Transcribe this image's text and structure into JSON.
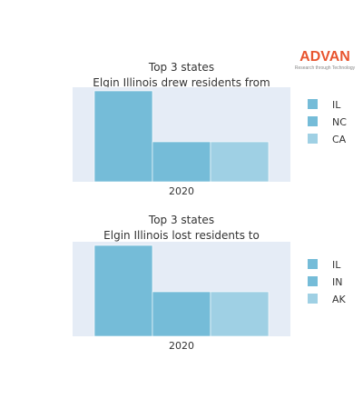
{
  "brand": {
    "name": "ADVAN",
    "tagline": "Research through Technology",
    "color": "#e8552f"
  },
  "chart_data": [
    {
      "type": "bar",
      "title": "Top 3 states",
      "subtitle": "Elgin Illinois drew residents from",
      "categories": [
        "2020"
      ],
      "series": [
        {
          "name": "IL",
          "values": [
            100
          ],
          "color": "#75bcd8"
        },
        {
          "name": "NC",
          "values": [
            44
          ],
          "color": "#75bcd8"
        },
        {
          "name": "CA",
          "values": [
            44
          ],
          "color": "#9fd0e4"
        }
      ],
      "ylim": [
        0,
        104
      ],
      "legend": "right",
      "grid": false
    },
    {
      "type": "bar",
      "title": "Top 3 states",
      "subtitle": "Elgin Illinois lost residents to",
      "categories": [
        "2020"
      ],
      "series": [
        {
          "name": "IL",
          "values": [
            100
          ],
          "color": "#75bcd8"
        },
        {
          "name": "IN",
          "values": [
            49
          ],
          "color": "#75bcd8"
        },
        {
          "name": "AK",
          "values": [
            49
          ],
          "color": "#9fd0e4"
        }
      ],
      "ylim": [
        0,
        104
      ],
      "legend": "right",
      "grid": false
    }
  ]
}
